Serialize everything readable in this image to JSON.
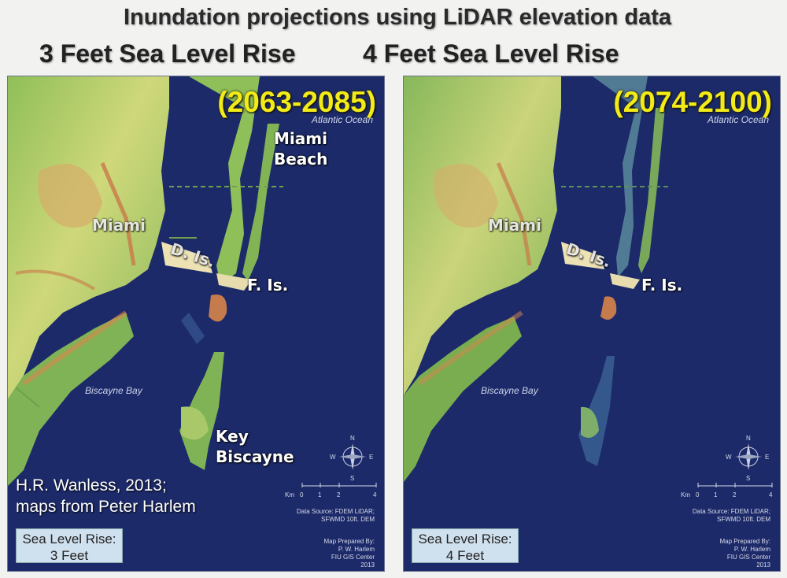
{
  "title": "Inundation projections using LiDAR elevation data",
  "subtitles": {
    "left": "3 Feet Sea Level Rise",
    "right": "4 Feet Sea Level Rise"
  },
  "panels": [
    {
      "years": "(2063-2085)",
      "ocean_label": "Atlantic Ocean",
      "bay_label": "Biscayne Bay",
      "places": {
        "miami_beach_1": "Miami",
        "miami_beach_2": "Beach",
        "miami": "Miami",
        "d_is": "D. Is.",
        "f_is": "F. Is.",
        "key_1": "Key",
        "key_2": "Biscayne"
      },
      "credit_1": "H.R. Wanless, 2013;",
      "credit_2": "maps from Peter Harlem",
      "legend_1": "Sea Level Rise:",
      "legend_2": "3 Feet",
      "source_1": "Data Source: FDEM LiDAR;",
      "source_2": "SFWMD 10ft. DEM",
      "prepared_1": "Map Prepared By:",
      "prepared_2": "P. W. Harlem",
      "prepared_3": "FIU GIS Center",
      "prepared_4": "2013",
      "scale_unit": "Km",
      "scale_0": "0",
      "scale_1": "1",
      "scale_2": "2",
      "scale_4": "4",
      "compass": {
        "n": "N",
        "s": "S",
        "e": "E",
        "w": "W"
      }
    },
    {
      "years": "(2074-2100)",
      "ocean_label": "Atlantic Ocean",
      "bay_label": "Biscayne Bay",
      "places": {
        "miami": "Miami",
        "d_is": "D. Is.",
        "f_is": "F. Is."
      },
      "legend_1": "Sea Level Rise:",
      "legend_2": "4 Feet",
      "source_1": "Data Source: FDEM LiDAR;",
      "source_2": "SFWMD 10ft. DEM",
      "prepared_1": "Map Prepared By:",
      "prepared_2": "P. W. Harlem",
      "prepared_3": "FIU GIS Center",
      "prepared_4": "2013",
      "scale_unit": "Km",
      "scale_0": "0",
      "scale_1": "1",
      "scale_2": "2",
      "scale_4": "4",
      "compass": {
        "n": "N",
        "s": "S",
        "e": "E",
        "w": "W"
      }
    }
  ],
  "colors": {
    "water": "#1c2a6a",
    "land_green": "#9cc45e",
    "land_yellow": "#d8d27a",
    "land_orange": "#d48a4a",
    "year_label": "#f3ea19",
    "legend_bg": "#cfe0ee"
  }
}
